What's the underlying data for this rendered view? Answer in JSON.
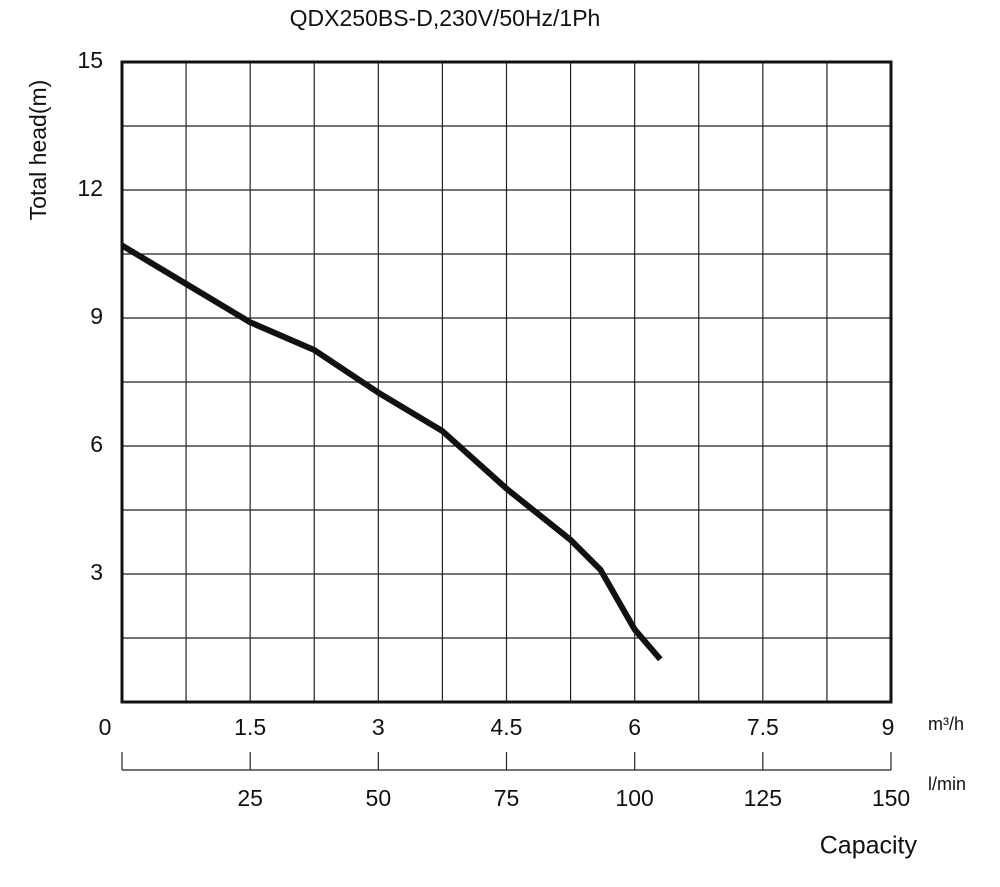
{
  "chart_data": {
    "type": "line",
    "title": "QDX250BS-D,230V/50Hz/1Ph",
    "y_label": "Total head(m)",
    "x_label": "Capacity",
    "x_unit": "m³/h",
    "x2_unit": "l/min",
    "xlim": [
      0,
      9
    ],
    "xticks": [
      0,
      1.5,
      3,
      4.5,
      6,
      7.5,
      9
    ],
    "x2lim": [
      0,
      150
    ],
    "x2ticks": [
      25,
      50,
      75,
      100,
      125,
      150
    ],
    "ylim": [
      0,
      15
    ],
    "yticks": [
      3,
      6,
      9,
      12,
      15
    ],
    "grid": true,
    "series": [
      {
        "color": "#111111",
        "x": [
          0,
          0.75,
          1.5,
          2.25,
          3,
          3.75,
          4.5,
          5.25,
          5.6,
          6,
          6.3
        ],
        "values": [
          10.7,
          9.8,
          8.9,
          8.25,
          7.25,
          6.35,
          5,
          3.8,
          3.1,
          1.7,
          1.0
        ]
      }
    ]
  }
}
